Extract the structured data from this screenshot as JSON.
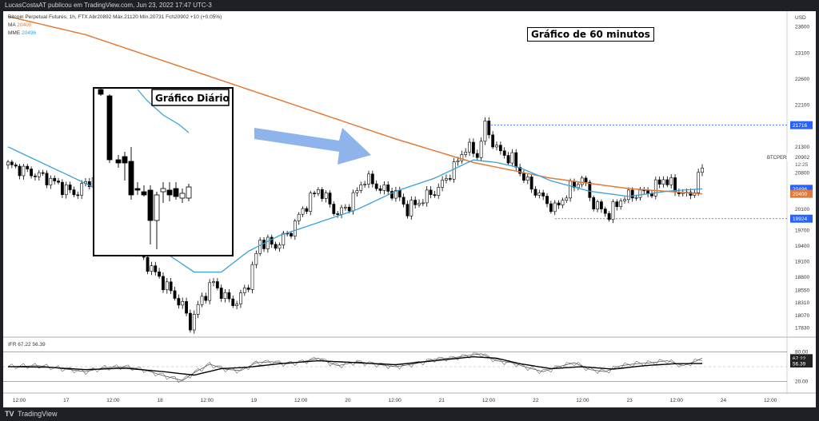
{
  "topbar": {
    "text": "LucasCostaAT publicou em TradingView.com, Jun 23, 2022 17:47 UTC-3"
  },
  "header": {
    "symbol_line": "Bitcoin Perpetual Futures, 1h, FTX  Abr20892  Máx.21120  Mín.20731  Fch20902  +10 (+0.05%)",
    "ma_label": "MA",
    "ma_value": "20400",
    "mme_label": "MME",
    "mme_value": "20496"
  },
  "annotations": {
    "hourly": "Gráfico de 60 minutos",
    "daily": "Gráfico Diário"
  },
  "price_axis": {
    "currency": "USD",
    "ticks": [
      "23600",
      "23100",
      "22600",
      "22100",
      "21300",
      "20800",
      "20100",
      "19700",
      "19400",
      "19100",
      "18800",
      "18550",
      "18310",
      "18070",
      "17830"
    ],
    "symbol": "BTCPERP",
    "last_price": "20902",
    "countdown": "12:25",
    "badges": [
      {
        "value": "21716",
        "price": 21716
      },
      {
        "value": "20496",
        "price": 20496
      },
      {
        "value": "20400",
        "price": 20400
      },
      {
        "value": "19924",
        "price": 19924
      }
    ]
  },
  "time_axis": {
    "labels": [
      "12:00",
      "17",
      "12:00",
      "18",
      "12:00",
      "19",
      "12:00",
      "20",
      "12:00",
      "21",
      "12:00",
      "22",
      "12:00",
      "23",
      "12:00",
      "24",
      "12:00"
    ]
  },
  "rsi": {
    "label": "IFR",
    "value1": "67.22",
    "value2": "56.39",
    "levels": [
      "80.00",
      "20.00"
    ],
    "badge1": "67.22",
    "badge2": "56.39"
  },
  "footer": {
    "logo": "TV",
    "brand": "TradingView"
  },
  "colors": {
    "up": "#ffffff",
    "down": "#000000",
    "ma": "#e07b39",
    "mme": "#3aa0d8",
    "badge_blue": "#2962ff",
    "badge_orange": "#e07b39",
    "arrow": "#7aa7e8"
  },
  "chart_data": [
    {
      "type": "candlestick",
      "title": "Bitcoin Perpetual Futures, 1h, FTX",
      "x_labels": [
        "12:00",
        "17",
        "12:00",
        "18",
        "12:00",
        "19",
        "12:00",
        "20",
        "12:00",
        "21",
        "12:00",
        "22",
        "12:00",
        "23",
        "12:00",
        "24",
        "12:00"
      ],
      "anchors": [
        [
          0,
          20950
        ],
        [
          10,
          20700
        ],
        [
          17,
          20400
        ],
        [
          22,
          20700
        ],
        [
          28,
          19600
        ],
        [
          33,
          19300
        ],
        [
          36,
          19050
        ],
        [
          40,
          18700
        ],
        [
          45,
          18250
        ],
        [
          47,
          17900
        ],
        [
          50,
          18400
        ],
        [
          53,
          18700
        ],
        [
          56,
          18400
        ],
        [
          59,
          18300
        ],
        [
          62,
          18700
        ],
        [
          65,
          19500
        ],
        [
          69,
          19400
        ],
        [
          73,
          19700
        ],
        [
          76,
          20100
        ],
        [
          80,
          20500
        ],
        [
          85,
          20000
        ],
        [
          88,
          20200
        ],
        [
          92,
          20700
        ],
        [
          96,
          20500
        ],
        [
          100,
          20400
        ],
        [
          103,
          20100
        ],
        [
          107,
          20300
        ],
        [
          111,
          20500
        ],
        [
          115,
          20900
        ],
        [
          118,
          21300
        ],
        [
          121,
          21150
        ],
        [
          123,
          21700
        ],
        [
          126,
          21250
        ],
        [
          130,
          21050
        ],
        [
          134,
          20600
        ],
        [
          138,
          20300
        ],
        [
          141,
          20100
        ],
        [
          145,
          20500
        ],
        [
          148,
          20700
        ],
        [
          151,
          20200
        ],
        [
          155,
          20000
        ],
        [
          158,
          20300
        ],
        [
          162,
          20400
        ],
        [
          166,
          20450
        ],
        [
          169,
          20700
        ],
        [
          172,
          20500
        ],
        [
          175,
          20350
        ],
        [
          177,
          20500
        ],
        [
          179,
          20902
        ]
      ],
      "ma": [
        [
          0,
          23800
        ],
        [
          20,
          23450
        ],
        [
          40,
          22950
        ],
        [
          60,
          22450
        ],
        [
          80,
          21950
        ],
        [
          100,
          21450
        ],
        [
          120,
          21000
        ],
        [
          140,
          20700
        ],
        [
          160,
          20500
        ],
        [
          179,
          20400
        ]
      ],
      "mme": [
        [
          0,
          21300
        ],
        [
          10,
          20950
        ],
        [
          20,
          20600
        ],
        [
          30,
          20200
        ],
        [
          40,
          19300
        ],
        [
          48,
          18900
        ],
        [
          55,
          18900
        ],
        [
          62,
          19300
        ],
        [
          70,
          19600
        ],
        [
          80,
          19850
        ],
        [
          90,
          20100
        ],
        [
          100,
          20450
        ],
        [
          110,
          20700
        ],
        [
          120,
          21050
        ],
        [
          126,
          21000
        ],
        [
          132,
          20900
        ],
        [
          140,
          20650
        ],
        [
          150,
          20450
        ],
        [
          160,
          20350
        ],
        [
          170,
          20450
        ],
        [
          179,
          20496
        ]
      ],
      "ylim": [
        17700,
        23900
      ],
      "horizontal_levels": [
        21716,
        19924
      ]
    },
    {
      "type": "line",
      "title": "IFR",
      "series": [
        {
          "name": "67.22"
        },
        {
          "name": "56.39"
        }
      ],
      "rsi_anchors": [
        [
          0,
          50
        ],
        [
          8,
          52
        ],
        [
          15,
          45
        ],
        [
          20,
          40
        ],
        [
          25,
          48
        ],
        [
          30,
          50
        ],
        [
          35,
          44
        ],
        [
          40,
          32
        ],
        [
          45,
          22
        ],
        [
          48,
          38
        ],
        [
          52,
          55
        ],
        [
          56,
          45
        ],
        [
          60,
          42
        ],
        [
          64,
          58
        ],
        [
          68,
          60
        ],
        [
          72,
          56
        ],
        [
          76,
          60
        ],
        [
          80,
          67
        ],
        [
          85,
          52
        ],
        [
          90,
          60
        ],
        [
          95,
          55
        ],
        [
          100,
          50
        ],
        [
          105,
          56
        ],
        [
          110,
          65
        ],
        [
          115,
          68
        ],
        [
          118,
          72
        ],
        [
          122,
          76
        ],
        [
          126,
          62
        ],
        [
          130,
          58
        ],
        [
          134,
          48
        ],
        [
          138,
          40
        ],
        [
          142,
          50
        ],
        [
          146,
          58
        ],
        [
          150,
          44
        ],
        [
          154,
          40
        ],
        [
          158,
          52
        ],
        [
          162,
          56
        ],
        [
          166,
          58
        ],
        [
          170,
          62
        ],
        [
          174,
          52
        ],
        [
          177,
          60
        ],
        [
          179,
          67.22
        ]
      ],
      "ma_anchors": [
        [
          0,
          50
        ],
        [
          10,
          49
        ],
        [
          20,
          44
        ],
        [
          30,
          47
        ],
        [
          40,
          40
        ],
        [
          48,
          33
        ],
        [
          55,
          46
        ],
        [
          62,
          49
        ],
        [
          70,
          56
        ],
        [
          80,
          62
        ],
        [
          90,
          58
        ],
        [
          100,
          54
        ],
        [
          110,
          62
        ],
        [
          120,
          70
        ],
        [
          126,
          67
        ],
        [
          132,
          56
        ],
        [
          140,
          46
        ],
        [
          148,
          50
        ],
        [
          156,
          45
        ],
        [
          164,
          52
        ],
        [
          172,
          56
        ],
        [
          179,
          56.39
        ]
      ],
      "ylim": [
        0,
        100
      ],
      "levels": [
        80,
        50,
        20
      ]
    }
  ]
}
